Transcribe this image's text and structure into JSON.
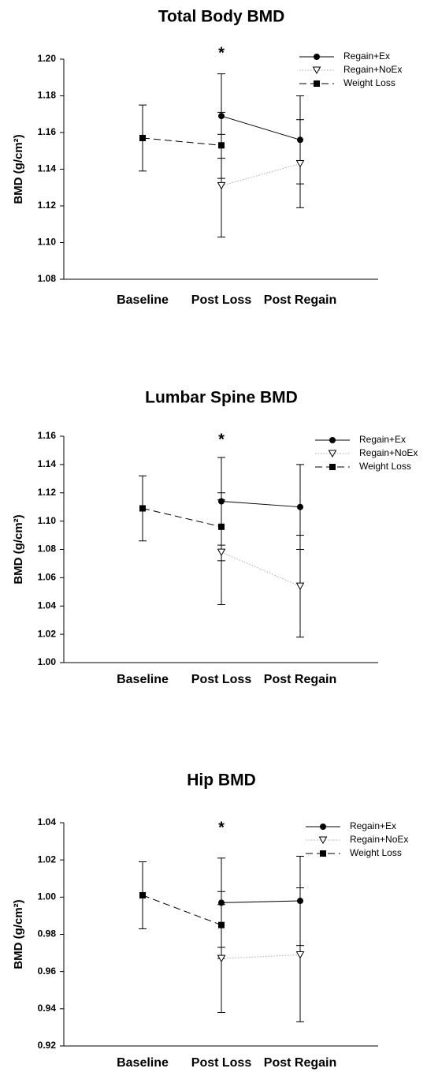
{
  "chart_data": [
    {
      "type": "line",
      "title": "Total Body BMD",
      "ylabel": "BMD (g/cm²)",
      "annotation": "*",
      "categories": [
        "Baseline",
        "Post Loss",
        "Post Regain"
      ],
      "ylim": [
        1.08,
        1.2
      ],
      "yticks": [
        1.08,
        {
          "value": 1.1,
          "label": "1.10"
        },
        1.12,
        1.14,
        1.16,
        1.18,
        {
          "value": 1.2,
          "label": "1.20"
        }
      ],
      "legend": "upper right",
      "series": [
        {
          "name": "Regain+Ex",
          "color": "#000000",
          "line_color": "#000000",
          "linestyle": "solid",
          "marker": "circle",
          "values": [
            null,
            1.169,
            1.156
          ],
          "errors": [
            null,
            0.023,
            0.024
          ]
        },
        {
          "name": "Regain+NoEx",
          "color": "#000000",
          "line_color": "#aaaaaa",
          "linestyle": "dotted",
          "marker": "triangle",
          "values": [
            null,
            1.131,
            1.143
          ],
          "errors": [
            null,
            0.028,
            0.024
          ]
        },
        {
          "name": "Weight Loss",
          "color": "#000000",
          "line_color": "#000000",
          "linestyle": "dashed",
          "marker": "square",
          "values": [
            1.157,
            1.153,
            null
          ],
          "errors": [
            0.018,
            0.018,
            null
          ]
        }
      ]
    },
    {
      "type": "line",
      "title": "Lumbar Spine BMD",
      "ylabel": "BMD (g/cm²)",
      "annotation": "*",
      "categories": [
        "Baseline",
        "Post Loss",
        "Post Regain"
      ],
      "ylim": [
        1.0,
        1.16
      ],
      "yticks": [
        {
          "value": 1.0,
          "label": "1.00"
        },
        1.02,
        1.04,
        1.06,
        1.08,
        {
          "value": 1.1,
          "label": "1.10"
        },
        1.12,
        1.14,
        1.16
      ],
      "legend": "upper right",
      "series": [
        {
          "name": "Regain+Ex",
          "color": "#000000",
          "line_color": "#000000",
          "linestyle": "solid",
          "marker": "circle",
          "values": [
            null,
            1.114,
            1.11
          ],
          "errors": [
            null,
            0.031,
            0.03
          ]
        },
        {
          "name": "Regain+NoEx",
          "color": "#000000",
          "line_color": "#aaaaaa",
          "linestyle": "dotted",
          "marker": "triangle",
          "values": [
            null,
            1.078,
            1.054
          ],
          "errors": [
            null,
            0.037,
            0.036
          ]
        },
        {
          "name": "Weight Loss",
          "color": "#000000",
          "line_color": "#000000",
          "linestyle": "dashed",
          "marker": "square",
          "values": [
            1.109,
            1.096,
            null
          ],
          "errors": [
            0.023,
            0.024,
            null
          ]
        }
      ]
    },
    {
      "type": "line",
      "title": "Hip BMD",
      "ylabel": "BMD (g/cm²)",
      "annotation": "*",
      "categories": [
        "Baseline",
        "Post Loss",
        "Post Regain"
      ],
      "ylim": [
        0.92,
        1.04
      ],
      "yticks": [
        0.92,
        0.94,
        0.96,
        0.98,
        {
          "value": 1.0,
          "label": "1.00"
        },
        1.02,
        1.04
      ],
      "legend": "upper right",
      "series": [
        {
          "name": "Regain+Ex",
          "color": "#000000",
          "line_color": "#000000",
          "linestyle": "solid",
          "marker": "circle",
          "values": [
            null,
            0.997,
            0.998
          ],
          "errors": [
            null,
            0.024,
            0.024
          ]
        },
        {
          "name": "Regain+NoEx",
          "color": "#000000",
          "line_color": "#aaaaaa",
          "linestyle": "dotted",
          "marker": "triangle",
          "values": [
            null,
            0.967,
            0.969
          ],
          "errors": [
            null,
            0.029,
            0.036
          ]
        },
        {
          "name": "Weight Loss",
          "color": "#000000",
          "line_color": "#000000",
          "linestyle": "dashed",
          "marker": "square",
          "values": [
            1.001,
            0.985,
            null
          ],
          "errors": [
            0.018,
            0.018,
            null
          ]
        }
      ]
    }
  ]
}
